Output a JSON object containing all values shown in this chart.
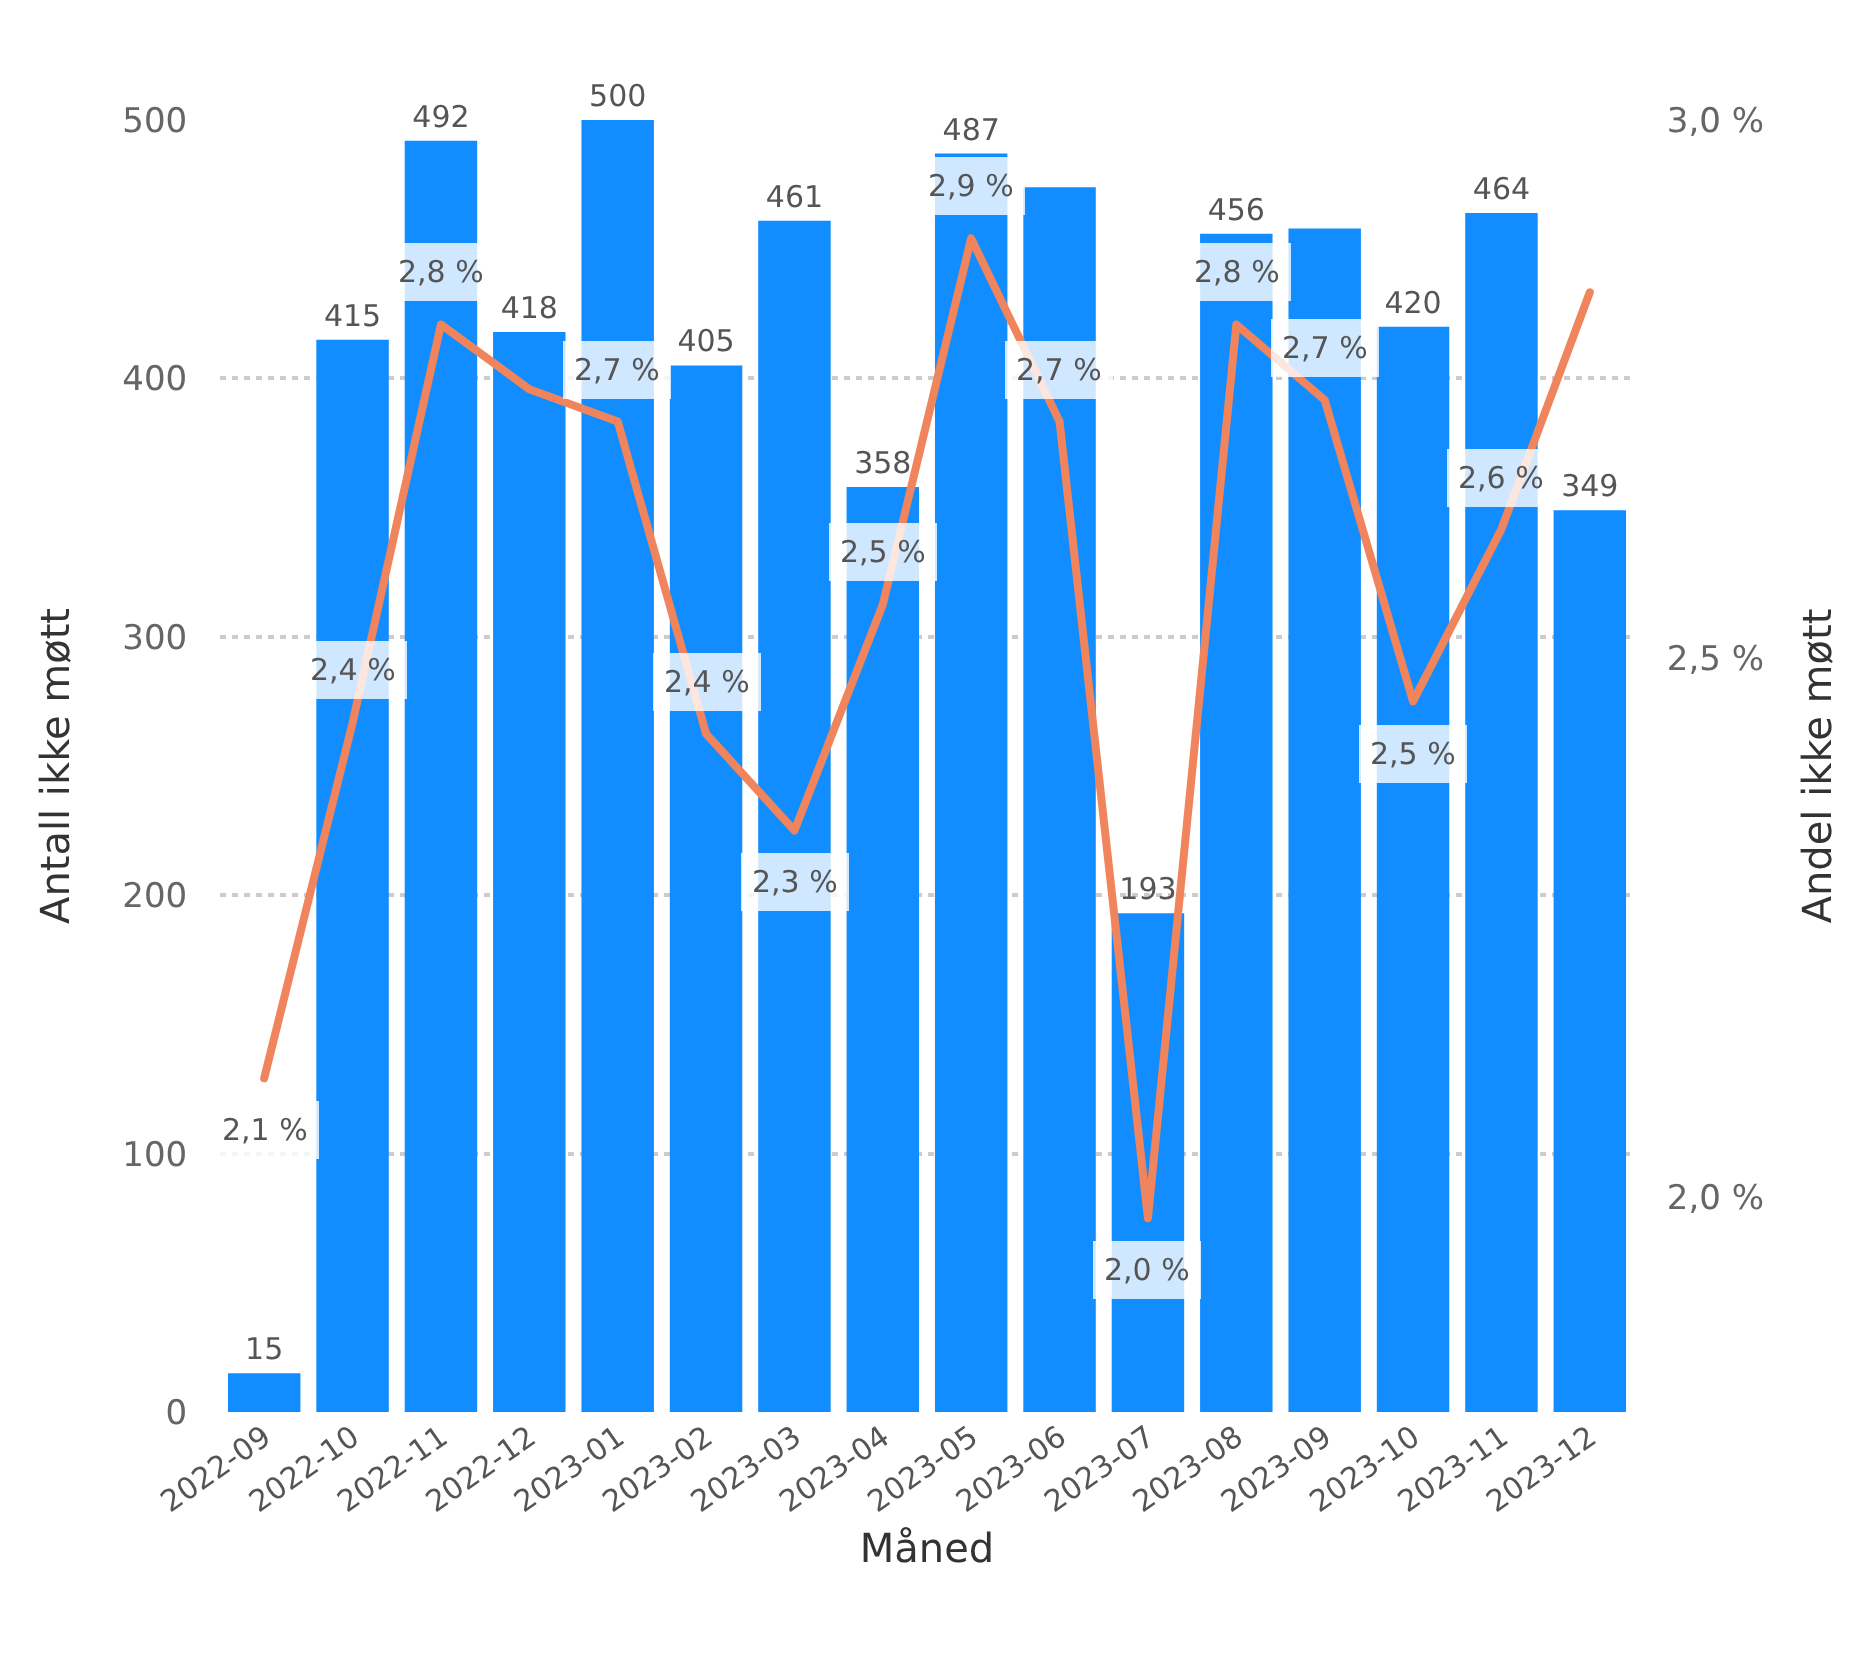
{
  "chart_data": {
    "type": "bar",
    "xlabel": "Måned",
    "ylabel": "Antall ikke møtt",
    "y2label": "Andel ikke møtt",
    "categories": [
      "2022-09",
      "2022-10",
      "2022-11",
      "2022-12",
      "2023-01",
      "2023-02",
      "2023-03",
      "2023-04",
      "2023-05",
      "2023-06",
      "2023-07",
      "2023-08",
      "2023-09",
      "2023-10",
      "2023-11",
      "2023-12"
    ],
    "series": [
      {
        "color": "#118dff",
        "values": [
          15,
          415,
          492,
          418,
          500,
          405,
          461,
          358,
          487,
          474,
          193,
          456,
          458,
          420,
          464,
          349
        ],
        "value_labels": [
          "15",
          "415",
          "492",
          "418",
          "500",
          "405",
          "461",
          "358",
          "487",
          null,
          "193",
          "456",
          null,
          "420",
          "464",
          "349"
        ]
      },
      {
        "type": "line",
        "axis": "y2",
        "color": "#f0845c",
        "values": [
          2.11,
          2.44,
          2.81,
          2.75,
          2.72,
          2.43,
          2.34,
          2.55,
          2.89,
          2.72,
          1.98,
          2.81,
          2.74,
          2.46,
          2.62,
          2.84
        ],
        "value_labels": [
          "2,1 %",
          "2,4 %",
          "2,8 %",
          null,
          "2,7 %",
          "2,4 %",
          "2,3 %",
          "2,5 %",
          "2,9 %",
          "2,7 %",
          "2,0 %",
          "2,8 %",
          "2,7 %",
          "2,5 %",
          "2,6 %",
          null
        ]
      }
    ],
    "ylim": [
      0,
      500
    ],
    "yticks": [
      0,
      100,
      200,
      300,
      400,
      500
    ],
    "y2lim": [
      1.8,
      3.0
    ],
    "y2ticks": [
      {
        "value": 2.0,
        "label": "2,0 %"
      },
      {
        "value": 2.5,
        "label": "2,5 %"
      },
      {
        "value": 3.0,
        "label": "3,0 %"
      }
    ],
    "grid": "y",
    "marker": "none",
    "line_style": "solid"
  }
}
